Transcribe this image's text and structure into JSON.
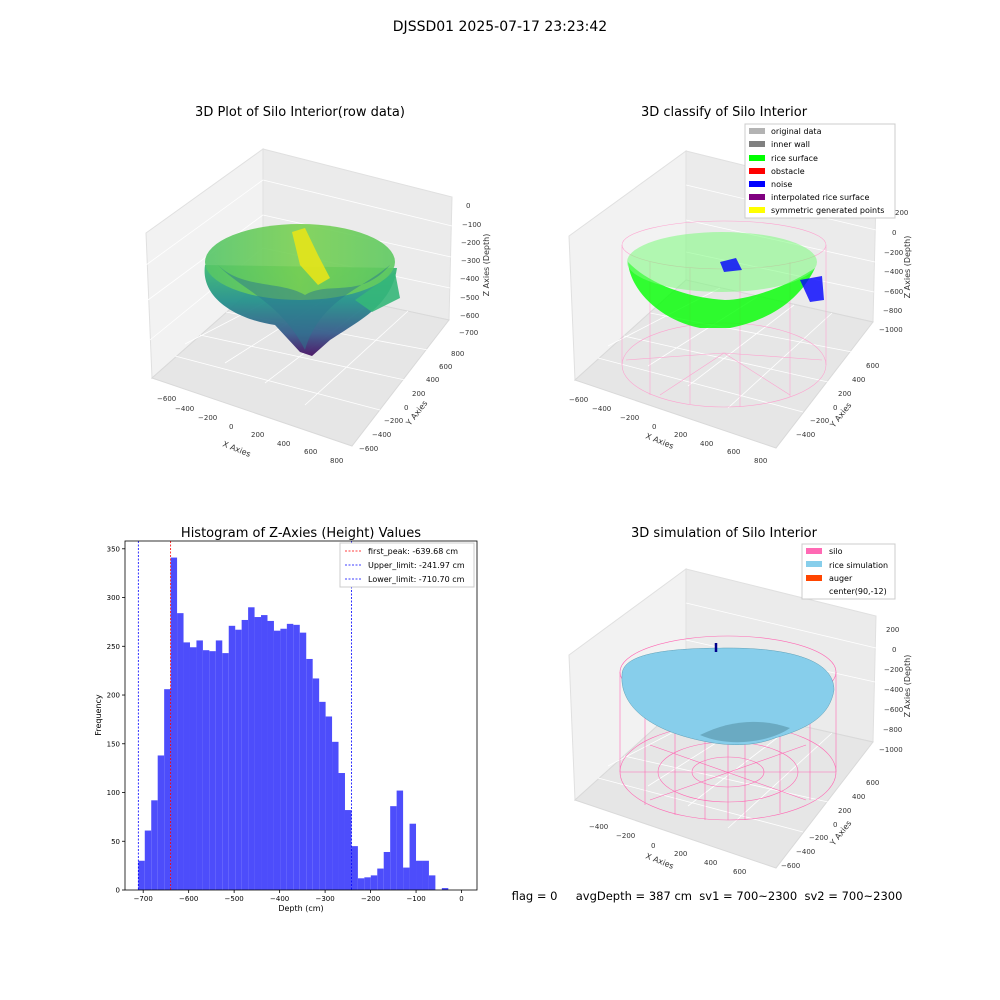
{
  "figure_title": "DJSSD01 2025-07-17 23:23:42",
  "status_line": "flag = 0     avgDepth = 387 cm  sv1 = 700~2300  sv2 = 700~2300",
  "colors": {
    "histogram_bar": "#4d4dfb",
    "first_peak_line": "#ff0000",
    "limit_line": "#0000ff",
    "silo": "#ff69b4",
    "rice_simulation": "#87ceeb",
    "auger": "#ff4500",
    "original_data": "#b3b3b3",
    "inner_wall": "#808080",
    "rice_surface": "#00ff00",
    "obstacle": "#ff0000",
    "noise": "#0000ff",
    "interpolated_rice_surface": "#800080",
    "symmetric_generated_points": "#ffff00"
  },
  "chart_data": [
    {
      "type": "scatter",
      "title": "3D Plot of Silo Interior(row data)",
      "xlabel": "X Axies",
      "ylabel": "Y Axies",
      "zlabel": "Z Axies (Depth)",
      "x_ticks": [
        "−600",
        "−400",
        "−200",
        "0",
        "200",
        "400",
        "600",
        "800"
      ],
      "y_ticks": [
        "−600",
        "−400",
        "−200",
        "0",
        "200",
        "400",
        "600",
        "800"
      ],
      "z_ticks": [
        "0",
        "−100",
        "−200",
        "−300",
        "−400",
        "−500",
        "−600",
        "−700"
      ]
    },
    {
      "type": "scatter",
      "title": "3D classify of Silo Interior",
      "xlabel": "X Axies",
      "ylabel": "Y Axies",
      "zlabel": "Z Axies (Depth)",
      "x_ticks": [
        "−600",
        "−400",
        "−200",
        "0",
        "200",
        "400",
        "600",
        "800"
      ],
      "y_ticks": [
        "−400",
        "−200",
        "0",
        "200",
        "400",
        "600"
      ],
      "z_ticks": [
        "200",
        "0",
        "−200",
        "−400",
        "−600",
        "−800",
        "−1000"
      ],
      "legend": [
        "original data",
        "inner wall",
        "rice surface",
        "obstacle",
        "noise",
        "interpolated rice surface",
        "symmetric generated points"
      ],
      "legend_position": "top-right"
    },
    {
      "type": "bar",
      "title": "Histogram of Z-Axies (Height) Values",
      "xlabel": "Depth (cm)",
      "ylabel": "Frequency",
      "xlim": [
        -740,
        34
      ],
      "ylim": [
        0,
        358
      ],
      "x_ticks": [
        -700,
        -600,
        -500,
        -400,
        -300,
        -200,
        -100,
        0
      ],
      "x_tick_labels": [
        "−700",
        "−600",
        "−500",
        "−400",
        "−300",
        "−200",
        "−100",
        "0"
      ],
      "y_ticks": [
        0,
        50,
        100,
        150,
        200,
        250,
        300,
        350
      ],
      "bin_start": -710.7,
      "bin_width": 14.2,
      "values": [
        30,
        61,
        92,
        138,
        206,
        341,
        284,
        254,
        249,
        256,
        246,
        245,
        256,
        243,
        271,
        267,
        277,
        290,
        280,
        282,
        276,
        266,
        268,
        273,
        272,
        264,
        237,
        217,
        193,
        178,
        152,
        120,
        82,
        45,
        12,
        13,
        15,
        22,
        39,
        86,
        102,
        23,
        68,
        30,
        30,
        15,
        0,
        2
      ],
      "vlines": [
        {
          "label": "first_peak: -639.68 cm",
          "x": -639.68,
          "color": "#ff0000"
        },
        {
          "label": "Upper_limit: -241.97 cm",
          "x": -241.97,
          "color": "#0000ff"
        },
        {
          "label": "Lower_limit: -710.70 cm",
          "x": -710.7,
          "color": "#0000ff"
        }
      ],
      "legend_position": "top-right"
    },
    {
      "type": "scatter",
      "title": "3D simulation of Silo Interior",
      "xlabel": "X Axies",
      "ylabel": "Y Axies",
      "zlabel": "Z Axies (Depth)",
      "x_ticks": [
        "−400",
        "−200",
        "0",
        "200",
        "400",
        "600"
      ],
      "y_ticks": [
        "−600",
        "−400",
        "−200",
        "0",
        "200",
        "400",
        "600"
      ],
      "z_ticks": [
        "200",
        "0",
        "−200",
        "−400",
        "−600",
        "−800",
        "−1000"
      ],
      "legend": [
        "silo",
        "rice simulation",
        "auger",
        "center(90,-12)"
      ],
      "legend_position": "top-right"
    }
  ]
}
